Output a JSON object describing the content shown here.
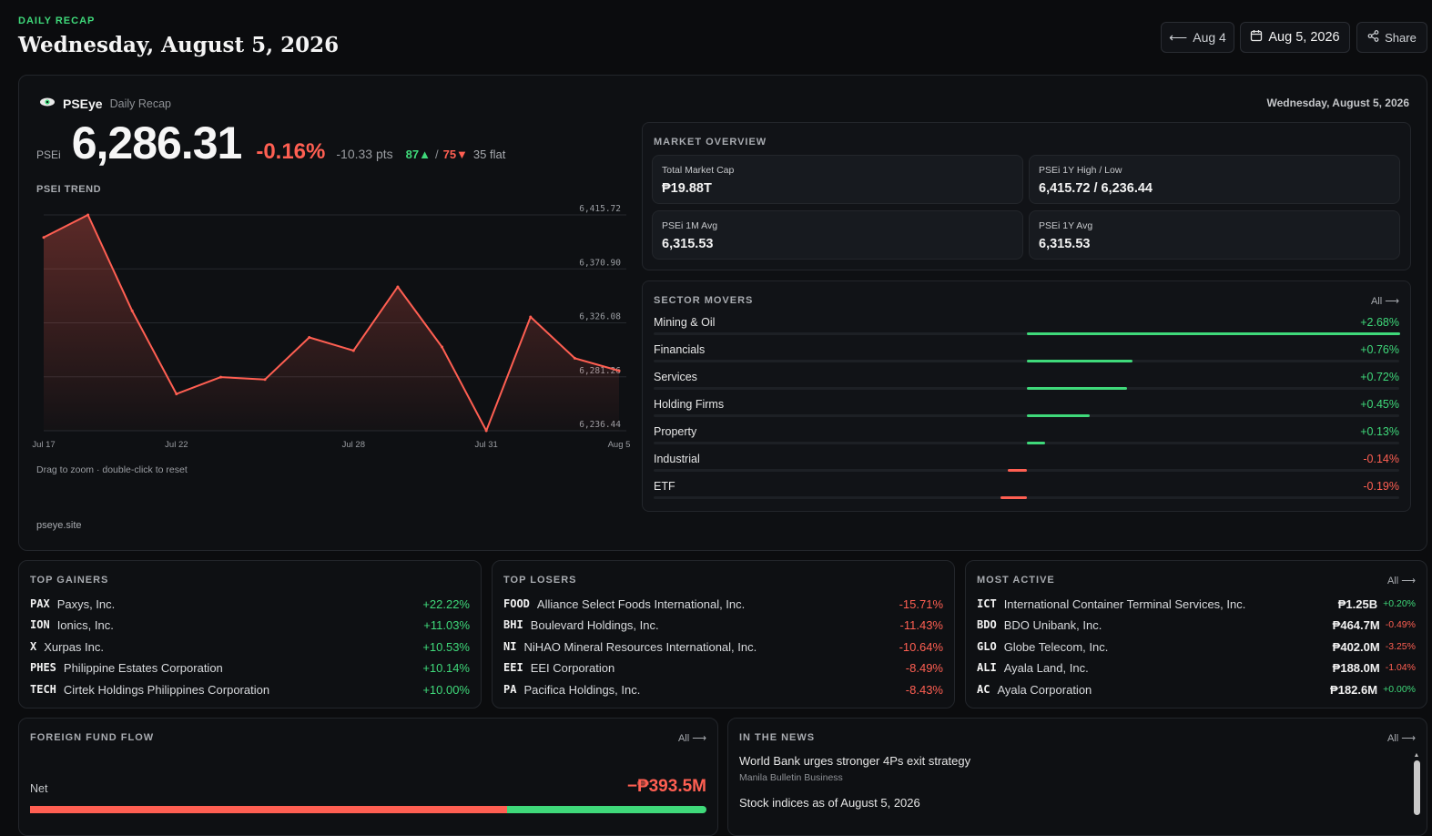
{
  "header": {
    "eyebrow": "DAILY RECAP",
    "title": "Wednesday, August 5, 2026",
    "prev_label": "Aug 4",
    "date_label": "Aug 5, 2026",
    "share_label": "Share"
  },
  "card": {
    "brand": "PSEye",
    "brand_sub": "Daily Recap",
    "date": "Wednesday, August 5, 2026",
    "index_name": "PSEi",
    "index_value": "6,286.31",
    "change_pct": "-0.16%",
    "change_pts": "-10.33 pts",
    "advances": "87▲",
    "sep": "/",
    "declines": "75▼",
    "flat": "35 flat",
    "trend_label": "PSEI TREND",
    "zoom_hint": "Drag to zoom · double-click to reset",
    "site": "pseye.site"
  },
  "chart_data": {
    "type": "area",
    "x": [
      "Jul 17",
      "Jul 20",
      "Jul 21",
      "Jul 22",
      "Jul 23",
      "Jul 24",
      "Jul 27",
      "Jul 28",
      "Jul 29",
      "Jul 30",
      "Jul 31",
      "Aug 3",
      "Aug 4",
      "Aug 5"
    ],
    "values": [
      6397.0,
      6415.72,
      6336.0,
      6267.0,
      6281.0,
      6279.0,
      6314.0,
      6303.0,
      6356.0,
      6306.0,
      6236.44,
      6331.0,
      6296.64,
      6286.31
    ],
    "x_tick_labels": [
      "Jul 17",
      "Jul 22",
      "Jul 28",
      "Jul 31",
      "Aug 5"
    ],
    "y_tick_labels": [
      "6,415.72",
      "6,370.90",
      "6,326.08",
      "6,281.26",
      "6,236.44"
    ],
    "ylim": [
      6236.44,
      6415.72
    ],
    "grid": true,
    "line_color": "#ff5f52"
  },
  "market_overview": {
    "title": "MARKET OVERVIEW",
    "stats": [
      {
        "label": "Total Market Cap",
        "value": "₱19.88T"
      },
      {
        "label": "PSEi 1Y High / Low",
        "value": "6,415.72 / 6,236.44"
      },
      {
        "label": "PSEi 1M Avg",
        "value": "6,315.53"
      },
      {
        "label": "PSEi 1Y Avg",
        "value": "6,315.53"
      }
    ]
  },
  "sector_movers": {
    "title": "SECTOR MOVERS",
    "all_label": "All ⟶",
    "max_abs": 2.68,
    "items": [
      {
        "name": "Mining & Oil",
        "change": "+2.68%",
        "value": 2.68
      },
      {
        "name": "Financials",
        "change": "+0.76%",
        "value": 0.76
      },
      {
        "name": "Services",
        "change": "+0.72%",
        "value": 0.72
      },
      {
        "name": "Holding Firms",
        "change": "+0.45%",
        "value": 0.45
      },
      {
        "name": "Property",
        "change": "+0.13%",
        "value": 0.13
      },
      {
        "name": "Industrial",
        "change": "-0.14%",
        "value": -0.14
      },
      {
        "name": "ETF",
        "change": "-0.19%",
        "value": -0.19
      }
    ]
  },
  "top_gainers": {
    "title": "TOP GAINERS",
    "rows": [
      {
        "ticker": "PAX",
        "name": "Paxys, Inc.",
        "pct": "+22.22%"
      },
      {
        "ticker": "ION",
        "name": "Ionics, Inc.",
        "pct": "+11.03%"
      },
      {
        "ticker": "X",
        "name": "Xurpas Inc.",
        "pct": "+10.53%"
      },
      {
        "ticker": "PHES",
        "name": "Philippine Estates Corporation",
        "pct": "+10.14%"
      },
      {
        "ticker": "TECH",
        "name": "Cirtek Holdings Philippines Corporation",
        "pct": "+10.00%"
      }
    ]
  },
  "top_losers": {
    "title": "TOP LOSERS",
    "rows": [
      {
        "ticker": "FOOD",
        "name": "Alliance Select Foods International, Inc.",
        "pct": "-15.71%"
      },
      {
        "ticker": "BHI",
        "name": "Boulevard Holdings, Inc.",
        "pct": "-11.43%"
      },
      {
        "ticker": "NI",
        "name": "NiHAO Mineral Resources International, Inc.",
        "pct": "-10.64%"
      },
      {
        "ticker": "EEI",
        "name": "EEI Corporation",
        "pct": "-8.49%"
      },
      {
        "ticker": "PA",
        "name": "Pacifica Holdings, Inc.",
        "pct": "-8.43%"
      }
    ]
  },
  "most_active": {
    "title": "MOST ACTIVE",
    "all_label": "All ⟶",
    "rows": [
      {
        "ticker": "ICT",
        "name": "International Container Terminal Services, Inc.",
        "value": "₱1.25B",
        "pct": "+0.20%",
        "dir": "up"
      },
      {
        "ticker": "BDO",
        "name": "BDO Unibank, Inc.",
        "value": "₱464.7M",
        "pct": "-0.49%",
        "dir": "down"
      },
      {
        "ticker": "GLO",
        "name": "Globe Telecom, Inc.",
        "value": "₱402.0M",
        "pct": "-3.25%",
        "dir": "down"
      },
      {
        "ticker": "ALI",
        "name": "Ayala Land, Inc.",
        "value": "₱188.0M",
        "pct": "-1.04%",
        "dir": "down"
      },
      {
        "ticker": "AC",
        "name": "Ayala Corporation",
        "value": "₱182.6M",
        "pct": "+0.00%",
        "dir": "up"
      }
    ]
  },
  "foreign_flow": {
    "title": "FOREIGN FUND FLOW",
    "all_label": "All ⟶",
    "net_label": "Net",
    "net_value": "−₱393.5M",
    "sell_share": 0.705
  },
  "news": {
    "title": "IN THE NEWS",
    "all_label": "All ⟶",
    "items": [
      {
        "headline": "World Bank urges stronger 4Ps exit strategy",
        "source": "Manila Bulletin Business"
      },
      {
        "headline": "Stock indices as of August 5, 2026",
        "source": ""
      }
    ]
  },
  "colors": {
    "up": "#3fd97a",
    "down": "#ff5f52",
    "accent": "#3fd97a"
  }
}
